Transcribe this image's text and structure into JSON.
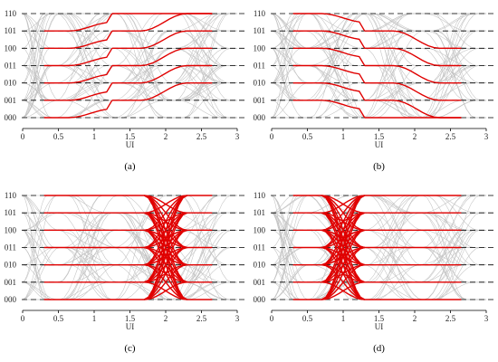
{
  "chart_data": [
    {
      "type": "line",
      "caption": "(a)",
      "xlabel": "UI",
      "xlim": [
        0,
        3
      ],
      "xticks": [
        0,
        0.5,
        1,
        1.5,
        2,
        2.5,
        3
      ],
      "xtick_labels": [
        "0",
        "0.5",
        "1",
        "1.5",
        "2",
        "2.5",
        "3"
      ],
      "levels": [
        "000",
        "001",
        "010",
        "011",
        "100",
        "101",
        "110"
      ],
      "grid": "dashed horizontal lines at each level",
      "highlight_color": "#e00000",
      "background_color": "#b8b8b8",
      "highlighted_transitions": [
        {
          "t1": 0.65,
          "t2": 1.25,
          "t3": 1.65,
          "t4": 2.3,
          "pattern": "rising staircase: each level steps up by one level in two transitions"
        }
      ]
    },
    {
      "type": "line",
      "caption": "(b)",
      "xlabel": "UI",
      "xlim": [
        0,
        3
      ],
      "xticks": [
        0,
        0.5,
        1,
        1.5,
        2,
        2.5,
        3
      ],
      "xtick_labels": [
        "0",
        "0.5",
        "1",
        "1.5",
        "2",
        "2.5",
        "3"
      ],
      "levels": [
        "000",
        "001",
        "010",
        "011",
        "100",
        "101",
        "110"
      ],
      "grid": "dashed horizontal lines at each level",
      "highlight_color": "#e00000",
      "background_color": "#b8b8b8",
      "highlighted_transitions": [
        {
          "t1": 0.7,
          "t2": 1.3,
          "t3": 1.7,
          "t4": 2.35,
          "pattern": "falling staircase: each level steps down by one level in two transitions"
        }
      ]
    },
    {
      "type": "line",
      "caption": "(c)",
      "xlabel": "UI",
      "xlim": [
        0,
        3
      ],
      "xticks": [
        0,
        0.5,
        1,
        1.5,
        2,
        2.5,
        3
      ],
      "xtick_labels": [
        "0",
        "0.5",
        "1",
        "1.5",
        "2",
        "2.5",
        "3"
      ],
      "levels": [
        "000",
        "001",
        "010",
        "011",
        "100",
        "101",
        "110"
      ],
      "grid": "dashed horizontal lines at each level",
      "highlight_color": "#e00000",
      "background_color": "#b8b8b8",
      "highlighted_transitions": [
        {
          "start": 1.7,
          "end": 2.3,
          "pattern": "all-to-all crossing between every pair of levels"
        }
      ]
    },
    {
      "type": "line",
      "caption": "(d)",
      "xlabel": "UI",
      "xlim": [
        0,
        3
      ],
      "xticks": [
        0,
        0.5,
        1,
        1.5,
        2,
        2.5,
        3
      ],
      "xtick_labels": [
        "0",
        "0.5",
        "1",
        "1.5",
        "2",
        "2.5",
        "3"
      ],
      "levels": [
        "000",
        "001",
        "010",
        "011",
        "100",
        "101",
        "110"
      ],
      "grid": "dashed horizontal lines at each level",
      "highlight_color": "#e00000",
      "background_color": "#b8b8b8",
      "highlighted_transitions": [
        {
          "start": 0.7,
          "end": 1.3,
          "pattern": "all-to-all crossing between every pair of levels"
        }
      ]
    }
  ]
}
